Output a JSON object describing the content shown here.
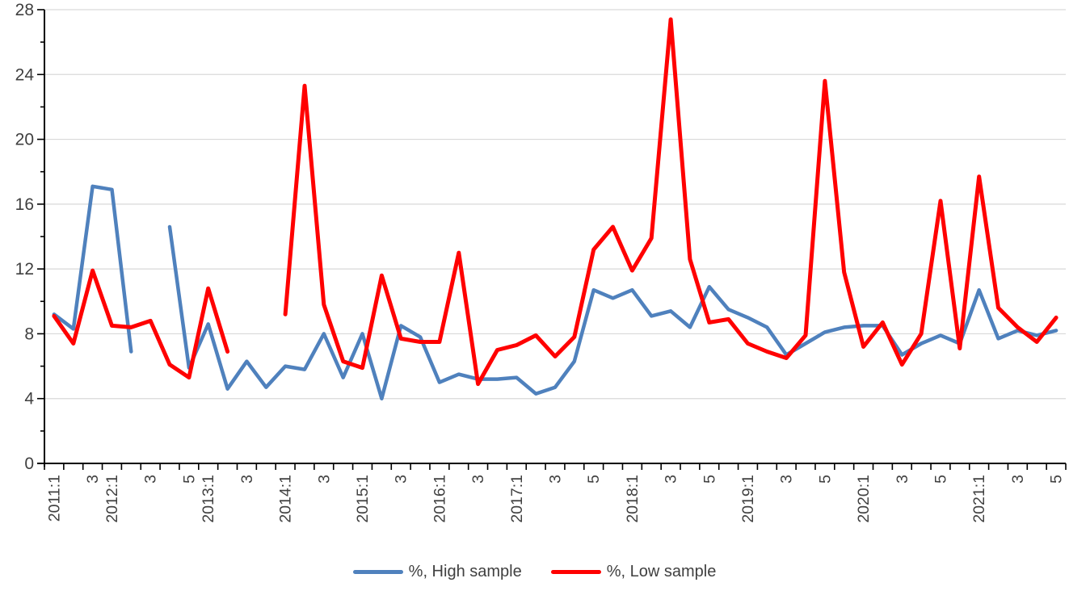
{
  "chart_data": {
    "type": "line",
    "title": "",
    "xlabel": "",
    "ylabel": "",
    "ylim": [
      0,
      28
    ],
    "y_major_step": 4,
    "y_minor_step": 2,
    "grid": true,
    "legend_position": "bottom",
    "x_tick_label_rotation": -90,
    "categories": [
      "2011:1",
      "",
      "3",
      "2012:1",
      "",
      "3",
      "",
      "5",
      "2013:1",
      "",
      "3",
      "",
      "2014:1",
      "",
      "3",
      "",
      "2015:1",
      "",
      "3",
      "",
      "2016:1",
      "",
      "3",
      "",
      "2017:1",
      "",
      "3",
      "",
      "5",
      "",
      "2018:1",
      "",
      "3",
      "",
      "5",
      "",
      "2019:1",
      "",
      "3",
      "",
      "5",
      "",
      "2020:1",
      "",
      "3",
      "",
      "5",
      "",
      "2021:1",
      "",
      "3",
      "",
      "5"
    ],
    "series": [
      {
        "name": "%, High sample",
        "color": "#4F81BD",
        "stroke_width": 4.5,
        "values": [
          9.2,
          8.3,
          17.1,
          16.9,
          6.9,
          null,
          14.6,
          5.9,
          8.6,
          4.6,
          6.3,
          4.7,
          6.0,
          5.8,
          8.0,
          5.3,
          8.0,
          4.0,
          8.5,
          7.8,
          5.0,
          5.5,
          5.2,
          5.2,
          5.3,
          4.3,
          4.7,
          6.3,
          10.7,
          10.2,
          10.7,
          9.1,
          9.4,
          8.4,
          10.9,
          9.5,
          9.0,
          8.4,
          6.7,
          7.4,
          8.1,
          8.4,
          8.5,
          8.5,
          6.7,
          7.4,
          7.9,
          7.4,
          10.7,
          7.7,
          8.2,
          7.9,
          8.2
        ]
      },
      {
        "name": "%, Low sample",
        "color": "#FF0000",
        "stroke_width": 5,
        "values": [
          9.1,
          7.4,
          11.9,
          8.5,
          8.4,
          8.8,
          6.1,
          5.3,
          10.8,
          6.9,
          null,
          null,
          9.2,
          23.3,
          9.8,
          6.3,
          5.9,
          11.6,
          7.7,
          7.5,
          7.5,
          13.0,
          4.9,
          7.0,
          7.3,
          7.9,
          6.6,
          7.8,
          13.2,
          14.6,
          11.9,
          13.9,
          27.4,
          12.6,
          8.7,
          8.9,
          7.4,
          6.9,
          6.5,
          7.9,
          23.6,
          11.8,
          7.2,
          8.7,
          6.1,
          8.0,
          16.2,
          7.1,
          17.7,
          9.6,
          8.4,
          7.5,
          9.0
        ]
      }
    ],
    "y_tick_labels": [
      "0",
      "4",
      "8",
      "12",
      "16",
      "20",
      "24",
      "28"
    ]
  },
  "legend": {
    "items": [
      {
        "label": "%, High sample",
        "color": "#4F81BD"
      },
      {
        "label": "%, Low sample",
        "color": "#FF0000"
      }
    ]
  },
  "style": {
    "grid_color": "#D9D9D9",
    "axis_color": "#000000",
    "tick_label_color": "#404040"
  }
}
